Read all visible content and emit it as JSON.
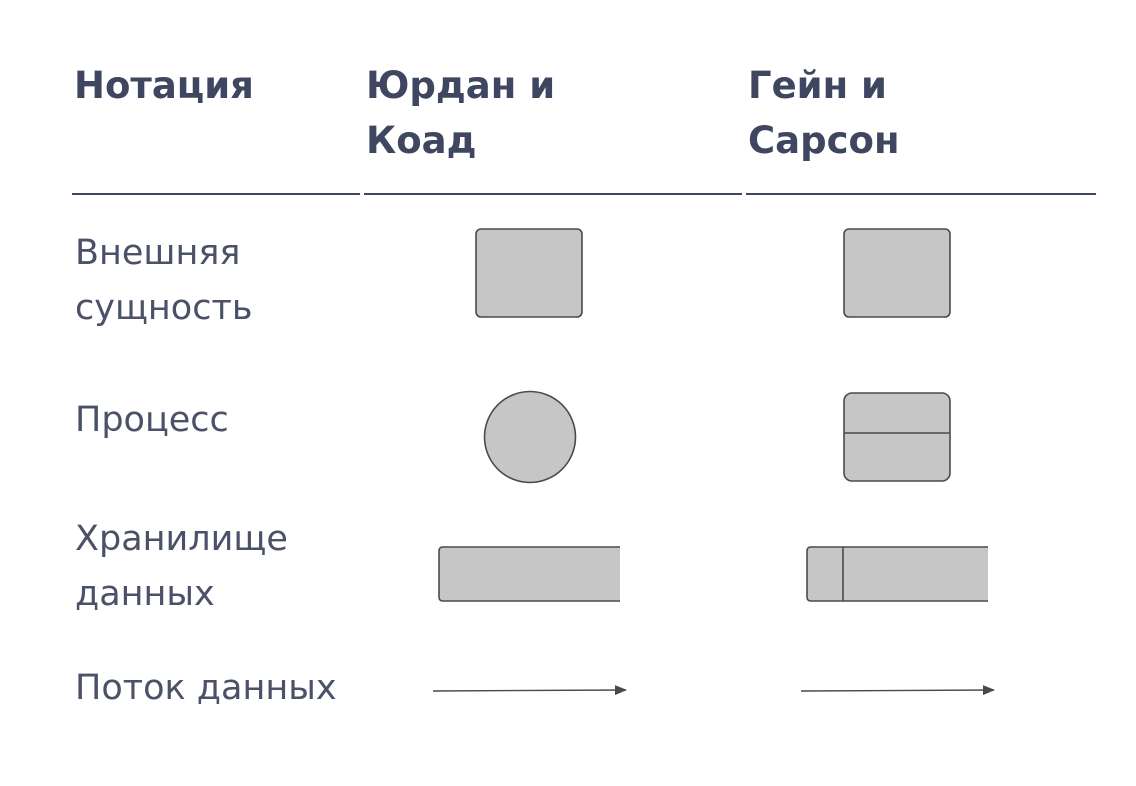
{
  "headers": {
    "notation": "Нотация",
    "yourdon_coad": "Юрдан и\nКоад",
    "gane_sarson": "Гейн и\nСарсон"
  },
  "rows": {
    "external_entity": "Внешняя\nсущность",
    "process": "Процесс",
    "data_store": "Хранилище\nданных",
    "data_flow": "Поток данных"
  },
  "colors": {
    "text": "#3f4760",
    "shape_fill": "#c6c6c6",
    "shape_stroke": "#4a4a4a"
  }
}
